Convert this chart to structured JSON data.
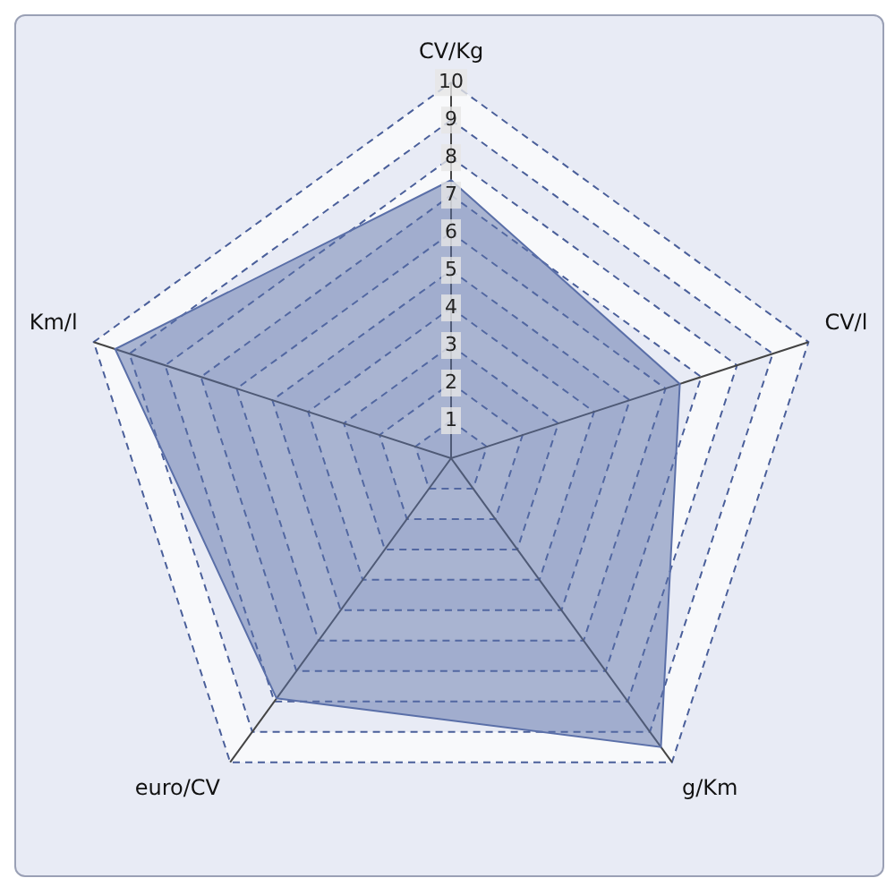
{
  "chart_data": {
    "type": "radar",
    "categories": [
      "CV/Kg",
      "CV/l",
      "g/Km",
      "euro/CV",
      "Km/l"
    ],
    "series": [
      {
        "color": "#5a6fa8",
        "values": [
          7.4,
          6.4,
          9.5,
          7.9,
          9.4
        ]
      }
    ],
    "ylim": [
      0,
      10
    ],
    "yticks": [
      1,
      2,
      3,
      4,
      5,
      6,
      7,
      8,
      9,
      10
    ],
    "grid": true,
    "legend": false
  }
}
